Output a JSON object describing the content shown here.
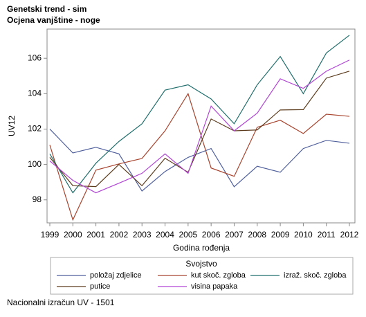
{
  "chart_data": {
    "type": "line",
    "title": "Genetski trend - sim",
    "subtitle": "Ocjena vanjštine - noge",
    "x_label": "Godina rođenja",
    "y_label": "UV12",
    "legend_title": "Svojstvo",
    "footnote": "Nacionalni izračun UV - 1501",
    "x": [
      1999,
      2000,
      2001,
      2002,
      2003,
      2004,
      2005,
      2006,
      2007,
      2008,
      2009,
      2010,
      2011,
      2012
    ],
    "xlim": [
      1998.88,
      2012.24
    ],
    "xticks": [
      1999,
      2000,
      2001,
      2002,
      2003,
      2004,
      2005,
      2006,
      2007,
      2008,
      2009,
      2010,
      2011,
      2012
    ],
    "ylim": [
      96.7,
      107.65
    ],
    "yticks": [
      98,
      100,
      102,
      104,
      106
    ],
    "series": [
      {
        "name": "položaj zdjelice",
        "color": "#4f5f9c",
        "values": [
          102.0,
          100.65,
          100.97,
          100.6,
          98.5,
          99.6,
          100.4,
          100.9,
          98.74,
          99.9,
          99.56,
          100.9,
          101.36,
          101.2
        ]
      },
      {
        "name": "kut skoč. zgloba",
        "color": "#a8452f",
        "values": [
          101.1,
          96.87,
          99.68,
          100.03,
          100.34,
          101.9,
          104.0,
          99.8,
          99.33,
          102.1,
          102.5,
          101.75,
          102.84,
          102.72
        ]
      },
      {
        "name": "izraž. skoč. zgloba",
        "color": "#1f6e6c",
        "values": [
          100.6,
          98.4,
          100.07,
          101.3,
          102.3,
          104.2,
          104.5,
          103.7,
          102.3,
          104.5,
          106.1,
          104.0,
          106.3,
          107.3
        ]
      },
      {
        "name": "putice",
        "color": "#5c3b1c",
        "values": [
          100.4,
          98.8,
          98.75,
          100.0,
          98.8,
          100.35,
          99.56,
          102.57,
          101.9,
          101.95,
          103.08,
          103.1,
          104.88,
          105.27
        ]
      },
      {
        "name": "visina papaka",
        "color": "#b044d4",
        "values": [
          100.2,
          99.1,
          98.4,
          98.94,
          99.5,
          100.6,
          99.5,
          103.3,
          101.9,
          102.9,
          104.84,
          104.3,
          105.27,
          105.9
        ]
      }
    ]
  }
}
